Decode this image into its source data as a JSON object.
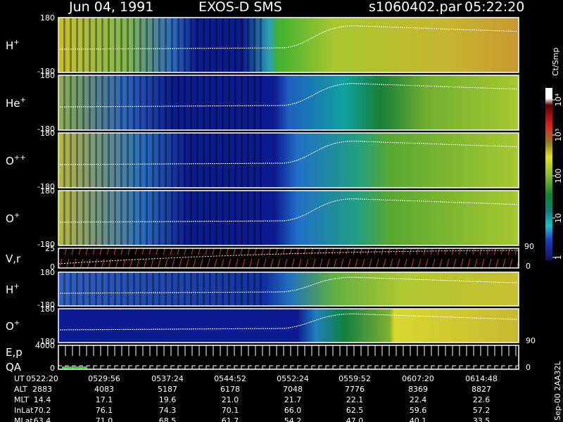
{
  "header": {
    "date": "Jun 04, 1991",
    "instrument": "EXOS-D SMS",
    "file": "s1060402.par",
    "time": "05:22:20"
  },
  "panels": [
    {
      "label": "H",
      "sup": "+",
      "top": "180",
      "bottom": "-180"
    },
    {
      "label": "He",
      "sup": "+",
      "top": "180",
      "bottom": "-180"
    },
    {
      "label": "O",
      "sup": "++",
      "top": "180",
      "bottom": "-180"
    },
    {
      "label": "O",
      "sup": "+",
      "top": "180",
      "bottom": "-180"
    },
    {
      "label": "V,r",
      "top": "25",
      "bottom": "0",
      "right_top": "90",
      "right_bottom": "0"
    },
    {
      "label": "H",
      "sup": "+",
      "top": "180",
      "bottom": "-180"
    },
    {
      "label": "O",
      "sup": "+",
      "top": "180",
      "bottom": "-180",
      "right_bottom": "90"
    },
    {
      "label": "E,p",
      "label2": "QA",
      "top": "4000",
      "bottom": "0",
      "right_bottom": "0"
    }
  ],
  "colorbar": {
    "title": "Ct/Smp",
    "labels": [
      "10⁴",
      "10³",
      "100",
      "10",
      "1"
    ]
  },
  "table": {
    "rows": [
      [
        "UT",
        "0522:20",
        "0529:56",
        "0537:24",
        "0544:52",
        "0552:24",
        "0559:52",
        "0607:20",
        "0614:48"
      ],
      [
        "ALT",
        "2883",
        "4083",
        "5187",
        "6178",
        "7048",
        "7776",
        "8369",
        "8827"
      ],
      [
        "MLT",
        "14.4",
        "17.1",
        "19.6",
        "21.0",
        "21.7",
        "22.1",
        "22.4",
        "22.6"
      ],
      [
        "InLat",
        "70.2",
        "76.1",
        "74.3",
        "70.1",
        "66.0",
        "62.5",
        "59.6",
        "57.2"
      ],
      [
        "MLat",
        "63.4",
        "71.0",
        "68.5",
        "61.7",
        "54.2",
        "47.0",
        "40.1",
        "33.5"
      ]
    ]
  },
  "footer": "Sep-00 2AA32L"
}
